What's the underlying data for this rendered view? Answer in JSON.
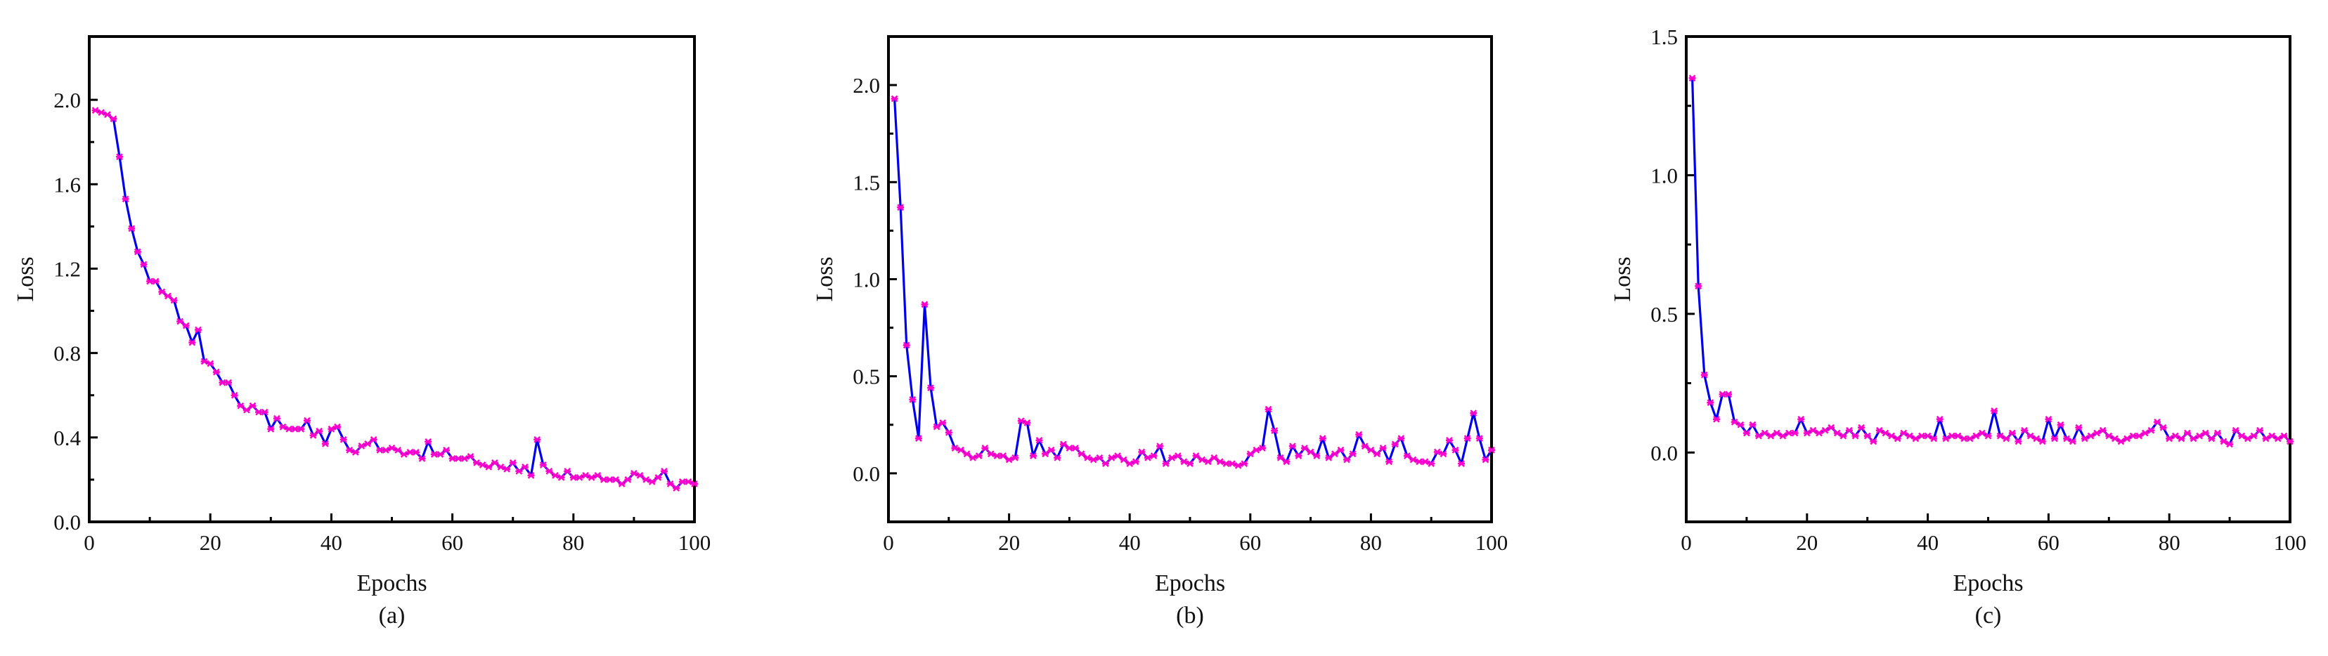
{
  "colors": {
    "line": "#0000ee",
    "marker": "#ff00cc",
    "axis": "#000000"
  },
  "chart_data": [
    {
      "type": "line",
      "caption": "(a)",
      "xlabel": "Epochs",
      "ylabel": "Loss",
      "xlim": [
        0,
        100
      ],
      "ylim": [
        0,
        2.3
      ],
      "xticks": [
        0,
        20,
        40,
        60,
        80,
        100
      ],
      "yticks": [
        0.0,
        0.4,
        0.8,
        1.2,
        1.6,
        2.0
      ],
      "ytick_labels": [
        "0.0",
        "0.4",
        "0.8",
        "1.2",
        "1.6",
        "2.0"
      ],
      "grid": false,
      "series": [
        {
          "x": [
            1,
            2,
            3,
            4,
            5,
            6,
            7,
            8,
            9,
            10,
            11,
            12,
            13,
            14,
            15,
            16,
            17,
            18,
            19,
            20,
            21,
            22,
            23,
            24,
            25,
            26,
            27,
            28,
            29,
            30,
            31,
            32,
            33,
            34,
            35,
            36,
            37,
            38,
            39,
            40,
            41,
            42,
            43,
            44,
            45,
            46,
            47,
            48,
            49,
            50,
            51,
            52,
            53,
            54,
            55,
            56,
            57,
            58,
            59,
            60,
            61,
            62,
            63,
            64,
            65,
            66,
            67,
            68,
            69,
            70,
            71,
            72,
            73,
            74,
            75,
            76,
            77,
            78,
            79,
            80,
            81,
            82,
            83,
            84,
            85,
            86,
            87,
            88,
            89,
            90,
            91,
            92,
            93,
            94,
            95,
            96,
            97,
            98,
            99,
            100
          ],
          "y": [
            1.95,
            1.94,
            1.93,
            1.91,
            1.73,
            1.53,
            1.39,
            1.28,
            1.22,
            1.14,
            1.14,
            1.09,
            1.07,
            1.05,
            0.95,
            0.93,
            0.85,
            0.91,
            0.76,
            0.75,
            0.71,
            0.66,
            0.66,
            0.6,
            0.55,
            0.53,
            0.55,
            0.52,
            0.52,
            0.44,
            0.49,
            0.45,
            0.44,
            0.44,
            0.44,
            0.48,
            0.41,
            0.43,
            0.37,
            0.44,
            0.45,
            0.39,
            0.34,
            0.33,
            0.36,
            0.37,
            0.39,
            0.34,
            0.34,
            0.35,
            0.34,
            0.32,
            0.33,
            0.33,
            0.3,
            0.38,
            0.32,
            0.32,
            0.34,
            0.3,
            0.3,
            0.3,
            0.31,
            0.28,
            0.27,
            0.26,
            0.28,
            0.26,
            0.25,
            0.28,
            0.24,
            0.26,
            0.22,
            0.39,
            0.27,
            0.24,
            0.22,
            0.21,
            0.24,
            0.21,
            0.21,
            0.22,
            0.21,
            0.22,
            0.2,
            0.2,
            0.2,
            0.18,
            0.2,
            0.23,
            0.22,
            0.2,
            0.19,
            0.21,
            0.24,
            0.18,
            0.16,
            0.19,
            0.19,
            0.18
          ]
        }
      ]
    },
    {
      "type": "line",
      "caption": "(b)",
      "xlabel": "Epochs",
      "ylabel": "Loss",
      "xlim": [
        0,
        100
      ],
      "ylim": [
        -0.25,
        2.25
      ],
      "xticks": [
        0,
        20,
        40,
        60,
        80,
        100
      ],
      "yticks": [
        0.0,
        0.5,
        1.0,
        1.5,
        2.0
      ],
      "ytick_labels": [
        "0.0",
        "0.5",
        "1.0",
        "1.5",
        "2.0"
      ],
      "grid": false,
      "series": [
        {
          "x": [
            1,
            2,
            3,
            4,
            5,
            6,
            7,
            8,
            9,
            10,
            11,
            12,
            13,
            14,
            15,
            16,
            17,
            18,
            19,
            20,
            21,
            22,
            23,
            24,
            25,
            26,
            27,
            28,
            29,
            30,
            31,
            32,
            33,
            34,
            35,
            36,
            37,
            38,
            39,
            40,
            41,
            42,
            43,
            44,
            45,
            46,
            47,
            48,
            49,
            50,
            51,
            52,
            53,
            54,
            55,
            56,
            57,
            58,
            59,
            60,
            61,
            62,
            63,
            64,
            65,
            66,
            67,
            68,
            69,
            70,
            71,
            72,
            73,
            74,
            75,
            76,
            77,
            78,
            79,
            80,
            81,
            82,
            83,
            84,
            85,
            86,
            87,
            88,
            89,
            90,
            91,
            92,
            93,
            94,
            95,
            96,
            97,
            98,
            99,
            100
          ],
          "y": [
            1.93,
            1.37,
            0.66,
            0.38,
            0.18,
            0.87,
            0.44,
            0.24,
            0.26,
            0.21,
            0.13,
            0.12,
            0.1,
            0.08,
            0.09,
            0.13,
            0.1,
            0.09,
            0.09,
            0.07,
            0.08,
            0.27,
            0.26,
            0.09,
            0.17,
            0.1,
            0.12,
            0.08,
            0.15,
            0.13,
            0.13,
            0.1,
            0.08,
            0.07,
            0.08,
            0.05,
            0.08,
            0.09,
            0.07,
            0.05,
            0.06,
            0.11,
            0.08,
            0.09,
            0.14,
            0.05,
            0.08,
            0.09,
            0.06,
            0.05,
            0.09,
            0.07,
            0.06,
            0.08,
            0.06,
            0.05,
            0.05,
            0.04,
            0.05,
            0.1,
            0.12,
            0.13,
            0.33,
            0.22,
            0.08,
            0.06,
            0.14,
            0.09,
            0.13,
            0.11,
            0.09,
            0.18,
            0.08,
            0.1,
            0.12,
            0.07,
            0.1,
            0.2,
            0.14,
            0.12,
            0.1,
            0.13,
            0.06,
            0.15,
            0.18,
            0.09,
            0.07,
            0.06,
            0.06,
            0.05,
            0.11,
            0.1,
            0.17,
            0.12,
            0.05,
            0.18,
            0.31,
            0.18,
            0.07,
            0.12
          ]
        }
      ]
    },
    {
      "type": "line",
      "caption": "(c)",
      "xlabel": "Epochs",
      "ylabel": "Loss",
      "xlim": [
        0,
        100
      ],
      "ylim": [
        -0.25,
        1.5
      ],
      "xticks": [
        0,
        20,
        40,
        60,
        80,
        100
      ],
      "yticks": [
        0.0,
        0.5,
        1.0,
        1.5
      ],
      "ytick_labels": [
        "0.0",
        "0.5",
        "1.0",
        "1.5"
      ],
      "grid": false,
      "series": [
        {
          "x": [
            1,
            2,
            3,
            4,
            5,
            6,
            7,
            8,
            9,
            10,
            11,
            12,
            13,
            14,
            15,
            16,
            17,
            18,
            19,
            20,
            21,
            22,
            23,
            24,
            25,
            26,
            27,
            28,
            29,
            30,
            31,
            32,
            33,
            34,
            35,
            36,
            37,
            38,
            39,
            40,
            41,
            42,
            43,
            44,
            45,
            46,
            47,
            48,
            49,
            50,
            51,
            52,
            53,
            54,
            55,
            56,
            57,
            58,
            59,
            60,
            61,
            62,
            63,
            64,
            65,
            66,
            67,
            68,
            69,
            70,
            71,
            72,
            73,
            74,
            75,
            76,
            77,
            78,
            79,
            80,
            81,
            82,
            83,
            84,
            85,
            86,
            87,
            88,
            89,
            90,
            91,
            92,
            93,
            94,
            95,
            96,
            97,
            98,
            99,
            100
          ],
          "y": [
            1.35,
            0.6,
            0.28,
            0.18,
            0.12,
            0.21,
            0.21,
            0.11,
            0.1,
            0.07,
            0.1,
            0.06,
            0.07,
            0.06,
            0.07,
            0.06,
            0.07,
            0.07,
            0.12,
            0.07,
            0.08,
            0.07,
            0.08,
            0.09,
            0.07,
            0.06,
            0.08,
            0.06,
            0.09,
            0.06,
            0.04,
            0.08,
            0.07,
            0.06,
            0.05,
            0.07,
            0.06,
            0.05,
            0.06,
            0.06,
            0.05,
            0.12,
            0.05,
            0.06,
            0.06,
            0.05,
            0.05,
            0.06,
            0.07,
            0.06,
            0.15,
            0.06,
            0.05,
            0.07,
            0.04,
            0.08,
            0.06,
            0.05,
            0.04,
            0.12,
            0.05,
            0.1,
            0.05,
            0.04,
            0.09,
            0.05,
            0.06,
            0.07,
            0.08,
            0.06,
            0.05,
            0.04,
            0.05,
            0.06,
            0.06,
            0.07,
            0.08,
            0.11,
            0.09,
            0.05,
            0.06,
            0.05,
            0.07,
            0.05,
            0.06,
            0.07,
            0.05,
            0.07,
            0.04,
            0.03,
            0.08,
            0.06,
            0.05,
            0.06,
            0.08,
            0.05,
            0.06,
            0.05,
            0.06,
            0.04
          ]
        }
      ]
    }
  ]
}
